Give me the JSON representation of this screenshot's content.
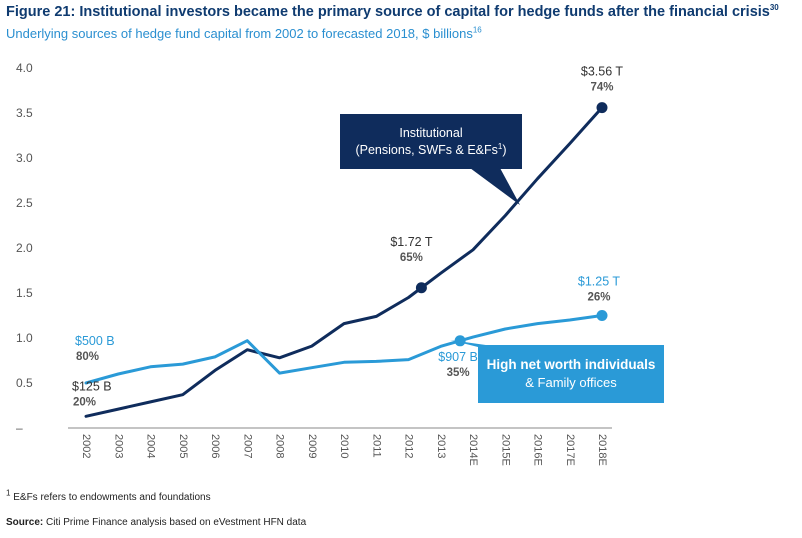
{
  "header": {
    "title": "Figure 21: Institutional investors became the primary source of capital for hedge funds after the financial crisis",
    "title_sup": "30",
    "subtitle": "Underlying sources of hedge fund capital from 2002 to forecasted 2018, $ billions",
    "subtitle_sup": "16"
  },
  "chart_data": {
    "type": "line",
    "categories": [
      "2002",
      "2003",
      "2004",
      "2005",
      "2006",
      "2007",
      "2008",
      "2009",
      "2010",
      "2011",
      "2012",
      "2013",
      "2014E",
      "2015E",
      "2016E",
      "2017E",
      "2018E"
    ],
    "yticks": [
      "4.0",
      "3.5",
      "3.0",
      "2.5",
      "2.0",
      "1.5",
      "1.0",
      "0.5",
      "–"
    ],
    "ylim": [
      0,
      4.0
    ],
    "grid": false,
    "series": [
      {
        "key": "institutional",
        "color": "#0f2c5c",
        "values": [
          0.13,
          0.21,
          0.29,
          0.37,
          0.64,
          0.87,
          0.78,
          0.91,
          1.16,
          1.24,
          1.45,
          1.72,
          1.98,
          2.36,
          2.77,
          3.16,
          3.56
        ]
      },
      {
        "key": "hnw",
        "color": "#2a9ad7",
        "values": [
          0.5,
          0.6,
          0.68,
          0.71,
          0.79,
          0.97,
          0.61,
          0.67,
          0.73,
          0.74,
          0.76,
          0.907,
          1.01,
          1.1,
          1.16,
          1.2,
          1.25
        ]
      }
    ],
    "annotations": [
      {
        "key": "inst-start",
        "series": "institutional",
        "index": 0,
        "value": "$125 B",
        "pct": "20%",
        "color": "#333333",
        "marker": false
      },
      {
        "key": "inst-2013",
        "series": "institutional",
        "index": 10.4,
        "value": "$1.72 T",
        "pct": "65%",
        "color": "#333333",
        "marker": true
      },
      {
        "key": "inst-2018",
        "series": "institutional",
        "index": 16,
        "value": "$3.56 T",
        "pct": "74%",
        "color": "#333333",
        "marker": true
      },
      {
        "key": "hnw-start",
        "series": "hnw",
        "index": 0,
        "value": "$500 B",
        "pct": "80%",
        "color": "#2a9ad7",
        "marker": false
      },
      {
        "key": "hnw-2013",
        "series": "hnw",
        "index": 11.6,
        "value": "$907 B",
        "pct": "35%",
        "color": "#2a9ad7",
        "marker": true
      },
      {
        "key": "hnw-2018",
        "series": "hnw",
        "index": 16,
        "value": "$1.25 T",
        "pct": "26%",
        "color": "#2a9ad7",
        "marker": true
      }
    ]
  },
  "callouts": {
    "institutional_line1": "Institutional",
    "institutional_line2": "(Pensions, SWFs & E&Fs",
    "institutional_sup": "1",
    "institutional_close": ")",
    "hnw_line1": "High net worth individuals",
    "hnw_line2": "& Family offices"
  },
  "footnotes": {
    "note_sup": "1",
    "note": " E&Fs refers to endowments and foundations",
    "source_label": "Source:",
    "source_text": " Citi Prime Finance analysis based on eVestment HFN data"
  }
}
